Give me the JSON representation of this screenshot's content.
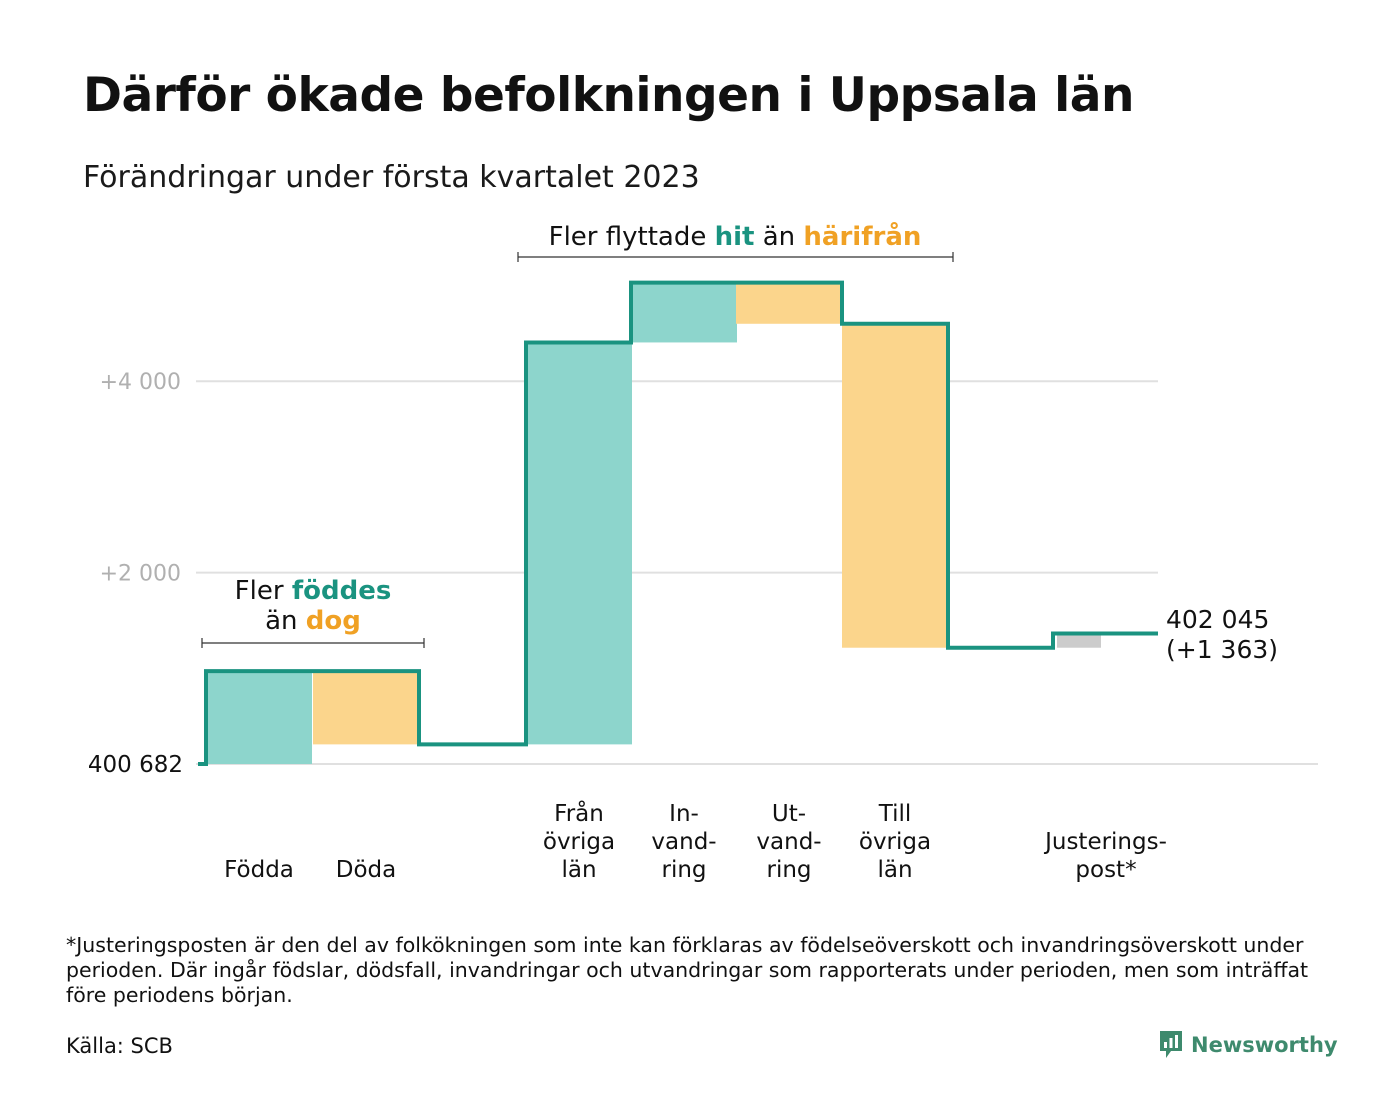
{
  "title": "Därför ökade befolkningen i Uppsala län",
  "subtitle": "Förändringar under första kvartalet 2023",
  "chart_data": {
    "type": "waterfall",
    "title": "Därför ökade befolkningen i Uppsala län",
    "subtitle": "Förändringar under första kvartalet 2023",
    "start": 400682,
    "end": 402045,
    "total_change": 1363,
    "start_label": "400 682",
    "end_label": "402 045",
    "end_change_label": "(+1 363)",
    "y_ticks": [
      {
        "value": 4000,
        "label": "+4 000"
      },
      {
        "value": 2000,
        "label": "+2 000"
      }
    ],
    "grid": true,
    "steps": [
      {
        "label_lines": [
          "Födda"
        ],
        "delta": 970,
        "kind": "increase"
      },
      {
        "label_lines": [
          "Döda"
        ],
        "delta": -765,
        "kind": "decrease"
      },
      {
        "label_lines": [
          "Från",
          "övriga",
          "län"
        ],
        "delta": 4200,
        "kind": "increase"
      },
      {
        "label_lines": [
          "In-",
          "vand-",
          "ring"
        ],
        "delta": 625,
        "kind": "increase"
      },
      {
        "label_lines": [
          "Ut-",
          "vand-",
          "ring"
        ],
        "delta": -430,
        "kind": "decrease"
      },
      {
        "label_lines": [
          "Till",
          "övriga",
          "län"
        ],
        "delta": -3385,
        "kind": "decrease"
      },
      {
        "label_lines": [
          "Justerings-",
          "post*"
        ],
        "delta": 148,
        "kind": "adjustment"
      }
    ],
    "annotations": [
      {
        "parts": [
          {
            "text": "Fler ",
            "style": "plain"
          },
          {
            "text": "föddes",
            "style": "increase"
          }
        ],
        "parts2": [
          {
            "text": "än ",
            "style": "plain"
          },
          {
            "text": "dog",
            "style": "decrease"
          }
        ]
      },
      {
        "parts": [
          {
            "text": "Fler flyttade ",
            "style": "plain"
          },
          {
            "text": "hit",
            "style": "increase"
          },
          {
            "text": " än ",
            "style": "plain"
          },
          {
            "text": "härifrån",
            "style": "decrease"
          }
        ]
      }
    ],
    "colors": {
      "increase": "#8dd5cc",
      "decrease": "#fbd58c",
      "adjustment": "#cccccc",
      "line": "#1a9380",
      "increase_text": "#1a9380",
      "decrease_text": "#f0a124",
      "grid": "#e0e0e0",
      "tick_text": "#b0b0b0"
    }
  },
  "footnote": "*Justeringsposten är den del av folkökningen som inte kan förklaras av födelseöverskott och invandringsöverskott under perioden. Där ingår födslar, dödsfall, invandringar och utvandringar som rapporterats under perioden, men som inträffat före periodens början.",
  "source": "Källa: SCB",
  "brand": {
    "name": "Newsworthy",
    "icon": "newsworthy-logo-icon",
    "color": "#3e8a6d"
  }
}
